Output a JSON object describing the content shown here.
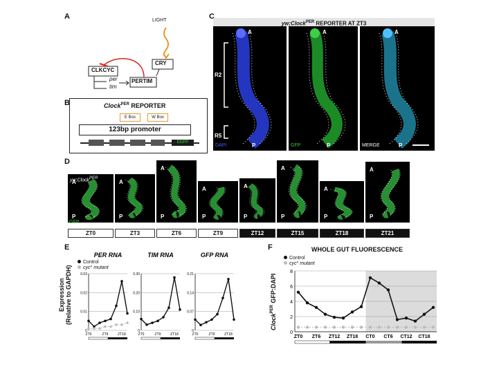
{
  "panelA": {
    "letter": "A",
    "light": "LIGHT",
    "clkcyc": "CLKCYC",
    "per": "per",
    "tim": "tim",
    "pertim": "PERTIM",
    "cry": "CRY"
  },
  "panelB": {
    "letter": "B",
    "title_main": "Clock",
    "title_sup": "PER",
    "title_rest": " REPORTER",
    "ebox": "E Box",
    "wbox": "W Box",
    "promoter": "123bp promoter",
    "gene": "EGFP"
  },
  "panelC": {
    "letter": "C",
    "title_pre": "yw;Clock",
    "title_sup": "PER",
    "title_rest": " REPORTER AT ZT3",
    "r2": "R2",
    "r5": "R5",
    "a": "A",
    "p": "P",
    "channels": [
      "DAPI",
      "GFP",
      "MERGE"
    ]
  },
  "panelD": {
    "letter": "D",
    "genotype_pre": "yw;Clock",
    "genotype_sup": "PER",
    "gfp": "GFP",
    "a": "A",
    "p": "P",
    "timepoints": [
      "ZT0",
      "ZT3",
      "ZT6",
      "ZT9",
      "ZT12",
      "ZT15",
      "ZT18",
      "ZT21"
    ]
  },
  "panelE": {
    "letter": "E",
    "ylabel1": "Expression",
    "ylabel2": "(Relative to GAPDH)",
    "legend": [
      "Control",
      "cyc⁰ mutant"
    ],
    "xticks": [
      "ZT0",
      "ZT9",
      "ZT18"
    ]
  },
  "panelF": {
    "letter": "F",
    "title": "WHOLE GUT FLUORESCENCE",
    "legend": [
      "Control",
      "cyc⁰ mutant"
    ],
    "ylabel_pre": "Clock",
    "ylabel_sup": "PER",
    "ylabel_rest": " GFP:DAPI"
  },
  "chart_data": [
    {
      "type": "line",
      "title": "PER RNA",
      "x": [
        "ZT0",
        "ZT3",
        "ZT6",
        "ZT9",
        "ZT12",
        "ZT15",
        "ZT18",
        "ZT21"
      ],
      "yticks": [
        "0.03",
        "0.02",
        "0.01",
        "0"
      ],
      "ylim": [
        0,
        0.03
      ],
      "series": [
        {
          "name": "Control",
          "values": [
            0.005,
            0.002,
            0.004,
            0.005,
            0.006,
            0.013,
            0.026,
            0.009
          ]
        },
        {
          "name": "cyc⁰ mutant",
          "values": [
            0.001,
            0.001,
            0.001,
            0.002,
            0.002,
            0.003,
            0.003,
            0.004
          ]
        }
      ]
    },
    {
      "type": "line",
      "title": "TIM RNA",
      "x": [
        "ZT0",
        "ZT3",
        "ZT6",
        "ZT9",
        "ZT12",
        "ZT15",
        "ZT18",
        "ZT21"
      ],
      "yticks": [
        "0.30",
        "0.20",
        "0.10",
        "0"
      ],
      "ylim": [
        0,
        0.3
      ],
      "series": [
        {
          "name": "Control",
          "values": [
            0.06,
            0.03,
            0.04,
            0.05,
            0.07,
            0.12,
            0.28,
            0.11
          ]
        }
      ]
    },
    {
      "type": "line",
      "title": "GFP RNA",
      "x": [
        "ZT0",
        "ZT3",
        "ZT6",
        "ZT9",
        "ZT12",
        "ZT15",
        "ZT18",
        "ZT21"
      ],
      "yticks": [
        "0.21",
        "0.14",
        "0.07",
        "0"
      ],
      "ylim": [
        0,
        0.21
      ],
      "series": [
        {
          "name": "Control",
          "values": [
            0.04,
            0.02,
            0.03,
            0.04,
            0.06,
            0.12,
            0.19,
            0.04
          ]
        }
      ]
    },
    {
      "type": "line",
      "title": "WHOLE GUT FLUORESCENCE",
      "x": [
        "ZT0",
        "ZT3",
        "ZT6",
        "ZT9",
        "ZT12",
        "ZT15",
        "ZT18",
        "ZT21",
        "CT0",
        "CT3",
        "CT6",
        "CT9",
        "CT12",
        "CT15",
        "CT18",
        "CT21"
      ],
      "xticks": [
        "ZT0",
        "ZT6",
        "ZT12",
        "ZT18",
        "CT0",
        "CT6",
        "CT12",
        "CT18"
      ],
      "yticks": [
        "8",
        "6",
        "4",
        "2",
        "0"
      ],
      "ylim": [
        0,
        8
      ],
      "series": [
        {
          "name": "Control",
          "values": [
            5.2,
            3.8,
            3.2,
            2.3,
            1.9,
            1.8,
            2.6,
            3.3,
            7.1,
            6.4,
            5.5,
            1.6,
            1.8,
            1.4,
            2.3,
            3.2
          ]
        },
        {
          "name": "cyc⁰ mutant",
          "values": [
            0.6,
            0.6,
            0.6,
            0.6,
            0.6,
            0.6,
            0.6,
            0.6,
            0.6,
            0.6,
            0.6,
            0.6,
            0.6,
            0.6,
            0.6,
            0.6
          ]
        }
      ]
    }
  ]
}
